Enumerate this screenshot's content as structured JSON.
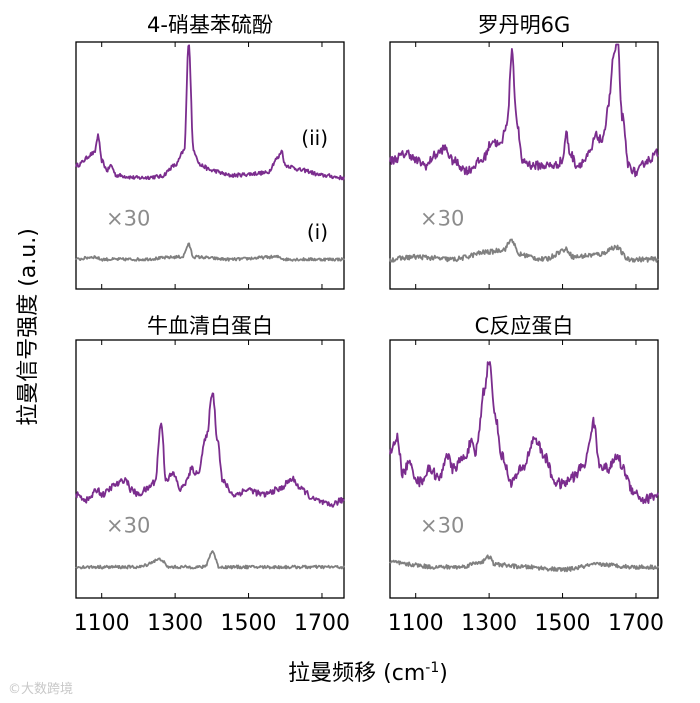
{
  "chart_data": {
    "type": "line",
    "xlabel": "拉曼频移 (cm",
    "xlabel_sup": "-1",
    "xlabel_close": ")",
    "ylabel": "拉曼信号强度 (a.u.)",
    "xlim": [
      1030,
      1760
    ],
    "ylim": [
      0,
      1
    ],
    "x_ticks": [
      1100,
      1300,
      1500,
      1700
    ],
    "x_tick_labels": [
      "1100",
      "1300",
      "1500",
      "1700"
    ],
    "colors": {
      "enhanced": "#7b2d8e",
      "reference": "#808080"
    },
    "series_labels": {
      "enhanced": "(ii)",
      "reference": "(i)"
    },
    "scale_label": "×30",
    "panels": [
      {
        "title": "4-硝基苯硫酚",
        "show_series_labels": true,
        "series": [
          {
            "name": "(ii)",
            "baseline": 0.455,
            "amplitude": 0.44,
            "noise": 0.008,
            "points": [
              [
                1030,
                0.5
              ],
              [
                1080,
                0.55
              ],
              [
                1090,
                0.62
              ],
              [
                1100,
                0.52
              ],
              [
                1115,
                0.48
              ],
              [
                1125,
                0.5
              ],
              [
                1140,
                0.46
              ],
              [
                1200,
                0.45
              ],
              [
                1260,
                0.455
              ],
              [
                1300,
                0.5
              ],
              [
                1325,
                0.56
              ],
              [
                1337,
                1.0
              ],
              [
                1350,
                0.56
              ],
              [
                1370,
                0.5
              ],
              [
                1400,
                0.48
              ],
              [
                1450,
                0.46
              ],
              [
                1550,
                0.47
              ],
              [
                1580,
                0.53
              ],
              [
                1590,
                0.56
              ],
              [
                1600,
                0.5
              ],
              [
                1650,
                0.48
              ],
              [
                1700,
                0.46
              ],
              [
                1760,
                0.45
              ]
            ]
          },
          {
            "name": "(i)",
            "baseline": 0.12,
            "amplitude": 0.44,
            "noise": 0.006,
            "points": [
              [
                1030,
                0.12
              ],
              [
                1080,
                0.13
              ],
              [
                1100,
                0.12
              ],
              [
                1200,
                0.12
              ],
              [
                1320,
                0.13
              ],
              [
                1337,
                0.18
              ],
              [
                1350,
                0.13
              ],
              [
                1450,
                0.12
              ],
              [
                1580,
                0.13
              ],
              [
                1600,
                0.12
              ],
              [
                1760,
                0.12
              ]
            ]
          }
        ]
      },
      {
        "title": "罗丹明6G",
        "show_series_labels": false,
        "series": [
          {
            "name": "(ii)",
            "baseline": 0.5,
            "amplitude": 0.44,
            "noise": 0.018,
            "points": [
              [
                1030,
                0.52
              ],
              [
                1080,
                0.55
              ],
              [
                1100,
                0.52
              ],
              [
                1130,
                0.5
              ],
              [
                1150,
                0.54
              ],
              [
                1180,
                0.57
              ],
              [
                1200,
                0.52
              ],
              [
                1240,
                0.48
              ],
              [
                1280,
                0.52
              ],
              [
                1310,
                0.6
              ],
              [
                1330,
                0.58
              ],
              [
                1350,
                0.68
              ],
              [
                1362,
                0.97
              ],
              [
                1375,
                0.68
              ],
              [
                1390,
                0.52
              ],
              [
                1420,
                0.5
              ],
              [
                1480,
                0.5
              ],
              [
                1500,
                0.52
              ],
              [
                1510,
                0.63
              ],
              [
                1520,
                0.55
              ],
              [
                1540,
                0.5
              ],
              [
                1560,
                0.52
              ],
              [
                1575,
                0.55
              ],
              [
                1590,
                0.62
              ],
              [
                1610,
                0.6
              ],
              [
                1625,
                0.75
              ],
              [
                1640,
                0.95
              ],
              [
                1650,
                1.0
              ],
              [
                1662,
                0.7
              ],
              [
                1680,
                0.5
              ],
              [
                1700,
                0.47
              ],
              [
                1730,
                0.52
              ],
              [
                1760,
                0.55
              ]
            ]
          },
          {
            "name": "(i)",
            "baseline": 0.12,
            "amplitude": 0.44,
            "noise": 0.01,
            "points": [
              [
                1030,
                0.12
              ],
              [
                1100,
                0.13
              ],
              [
                1200,
                0.12
              ],
              [
                1300,
                0.15
              ],
              [
                1340,
                0.16
              ],
              [
                1362,
                0.2
              ],
              [
                1380,
                0.14
              ],
              [
                1450,
                0.12
              ],
              [
                1510,
                0.16
              ],
              [
                1530,
                0.13
              ],
              [
                1600,
                0.14
              ],
              [
                1645,
                0.17
              ],
              [
                1680,
                0.12
              ],
              [
                1760,
                0.12
              ]
            ]
          }
        ]
      },
      {
        "title": "牛血清白蛋白",
        "show_series_labels": false,
        "series": [
          {
            "name": "(ii)",
            "baseline": 0.38,
            "amplitude": 0.44,
            "noise": 0.012,
            "points": [
              [
                1030,
                0.4
              ],
              [
                1060,
                0.38
              ],
              [
                1090,
                0.42
              ],
              [
                1100,
                0.4
              ],
              [
                1140,
                0.44
              ],
              [
                1165,
                0.46
              ],
              [
                1180,
                0.42
              ],
              [
                1200,
                0.4
              ],
              [
                1220,
                0.42
              ],
              [
                1245,
                0.45
              ],
              [
                1262,
                0.68
              ],
              [
                1275,
                0.46
              ],
              [
                1295,
                0.48
              ],
              [
                1315,
                0.42
              ],
              [
                1330,
                0.45
              ],
              [
                1345,
                0.5
              ],
              [
                1360,
                0.48
              ],
              [
                1385,
                0.62
              ],
              [
                1402,
                0.8
              ],
              [
                1415,
                0.62
              ],
              [
                1430,
                0.45
              ],
              [
                1460,
                0.4
              ],
              [
                1500,
                0.42
              ],
              [
                1540,
                0.4
              ],
              [
                1580,
                0.42
              ],
              [
                1620,
                0.46
              ],
              [
                1645,
                0.42
              ],
              [
                1680,
                0.38
              ],
              [
                1720,
                0.36
              ],
              [
                1760,
                0.38
              ]
            ]
          },
          {
            "name": "(i)",
            "baseline": 0.12,
            "amplitude": 0.44,
            "noise": 0.006,
            "points": [
              [
                1030,
                0.12
              ],
              [
                1200,
                0.12
              ],
              [
                1262,
                0.15
              ],
              [
                1280,
                0.12
              ],
              [
                1380,
                0.12
              ],
              [
                1402,
                0.18
              ],
              [
                1420,
                0.12
              ],
              [
                1550,
                0.12
              ],
              [
                1760,
                0.12
              ]
            ]
          }
        ]
      },
      {
        "title": "C反应蛋白",
        "show_series_labels": false,
        "series": [
          {
            "name": "(ii)",
            "baseline": 0.4,
            "amplitude": 0.44,
            "noise": 0.02,
            "points": [
              [
                1030,
                0.56
              ],
              [
                1050,
                0.62
              ],
              [
                1065,
                0.48
              ],
              [
                1080,
                0.52
              ],
              [
                1110,
                0.45
              ],
              [
                1140,
                0.5
              ],
              [
                1165,
                0.46
              ],
              [
                1185,
                0.56
              ],
              [
                1200,
                0.5
              ],
              [
                1230,
                0.54
              ],
              [
                1252,
                0.6
              ],
              [
                1262,
                0.55
              ],
              [
                1270,
                0.62
              ],
              [
                1285,
                0.8
              ],
              [
                1300,
                0.92
              ],
              [
                1315,
                0.72
              ],
              [
                1335,
                0.55
              ],
              [
                1360,
                0.45
              ],
              [
                1390,
                0.5
              ],
              [
                1425,
                0.62
              ],
              [
                1450,
                0.55
              ],
              [
                1480,
                0.45
              ],
              [
                1500,
                0.44
              ],
              [
                1530,
                0.47
              ],
              [
                1560,
                0.52
              ],
              [
                1585,
                0.68
              ],
              [
                1600,
                0.52
              ],
              [
                1625,
                0.5
              ],
              [
                1650,
                0.55
              ],
              [
                1665,
                0.5
              ],
              [
                1690,
                0.42
              ],
              [
                1720,
                0.38
              ],
              [
                1760,
                0.4
              ]
            ]
          },
          {
            "name": "(i)",
            "baseline": 0.12,
            "amplitude": 0.44,
            "noise": 0.008,
            "points": [
              [
                1030,
                0.14
              ],
              [
                1080,
                0.13
              ],
              [
                1150,
                0.12
              ],
              [
                1220,
                0.12
              ],
              [
                1280,
                0.14
              ],
              [
                1300,
                0.16
              ],
              [
                1315,
                0.13
              ],
              [
                1400,
                0.12
              ],
              [
                1500,
                0.11
              ],
              [
                1600,
                0.13
              ],
              [
                1700,
                0.12
              ],
              [
                1760,
                0.12
              ]
            ]
          }
        ]
      }
    ]
  },
  "watermark": "©大数跨境"
}
